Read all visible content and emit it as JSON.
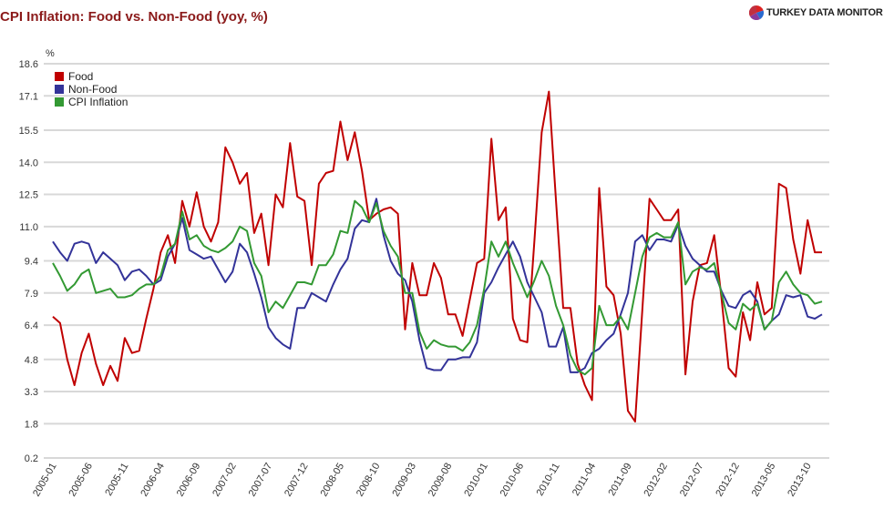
{
  "title": "CPI Inflation: Food vs. Non-Food (yoy, %)",
  "logo": {
    "text": "TURKEY DATA MONITOR",
    "icon": "pie-chart-icon"
  },
  "chart_data": {
    "type": "line",
    "title": "CPI Inflation: Food vs. Non-Food (yoy, %)",
    "ylabel": "%",
    "ylim": [
      0.2,
      18.6
    ],
    "yticks": [
      "0.2",
      "1.8",
      "3.3",
      "4.8",
      "6.4",
      "7.9",
      "9.4",
      "11.0",
      "12.5",
      "14.0",
      "15.5",
      "17.1",
      "18.6"
    ],
    "grid": true,
    "legend_placement": "top-left",
    "x_start": "2005-01",
    "x_end": "2013-12",
    "xtick_labels": [
      "2005-01",
      "2005-06",
      "2005-11",
      "2006-04",
      "2006-09",
      "2007-02",
      "2007-07",
      "2007-12",
      "2008-05",
      "2008-10",
      "2009-03",
      "2009-08",
      "2010-01",
      "2010-06",
      "2010-11",
      "2011-04",
      "2011-09",
      "2012-02",
      "2012-07",
      "2012-12",
      "2013-05",
      "2013-10"
    ],
    "series": [
      {
        "name": "Food",
        "color": "#c00000",
        "values": [
          6.8,
          6.5,
          4.8,
          3.6,
          5.1,
          6.0,
          4.6,
          3.6,
          4.5,
          3.8,
          5.8,
          5.1,
          5.2,
          6.7,
          8.1,
          9.8,
          10.6,
          9.3,
          12.2,
          11.0,
          12.6,
          11.0,
          10.3,
          11.2,
          14.7,
          14.0,
          13.0,
          13.5,
          10.7,
          11.6,
          9.2,
          12.5,
          11.9,
          14.9,
          12.4,
          12.2,
          9.2,
          13.0,
          13.5,
          13.6,
          15.9,
          14.1,
          15.4,
          13.6,
          11.3,
          11.6,
          11.8,
          11.9,
          11.6,
          6.2,
          9.3,
          7.8,
          7.8,
          9.3,
          8.6,
          6.9,
          6.9,
          5.9,
          7.6,
          9.3,
          9.5,
          15.1,
          11.3,
          11.9,
          6.7,
          5.7,
          5.6,
          10.4,
          15.4,
          17.3,
          12.2,
          7.2,
          7.2,
          4.6,
          3.6,
          2.9,
          12.8,
          8.2,
          7.8,
          6.0,
          2.4,
          1.9,
          7.1,
          12.3,
          11.8,
          11.3,
          11.3,
          11.8,
          4.1,
          7.5,
          9.2,
          9.3,
          10.6,
          7.7,
          4.4,
          4.0,
          7.0,
          5.7,
          8.4,
          6.9,
          7.2,
          13.0,
          12.8,
          10.4,
          8.8,
          11.3,
          9.8,
          9.8
        ]
      },
      {
        "name": "Non-Food",
        "color": "#333399",
        "values": [
          10.3,
          9.8,
          9.4,
          10.2,
          10.3,
          10.2,
          9.3,
          9.8,
          9.5,
          9.2,
          8.5,
          8.9,
          9.0,
          8.7,
          8.3,
          8.5,
          9.6,
          10.2,
          11.4,
          9.9,
          9.7,
          9.5,
          9.6,
          9.0,
          8.4,
          8.9,
          10.2,
          9.8,
          8.8,
          7.7,
          6.3,
          5.8,
          5.5,
          5.3,
          7.2,
          7.2,
          7.9,
          7.7,
          7.5,
          8.3,
          9.0,
          9.5,
          10.9,
          11.3,
          11.2,
          12.3,
          10.6,
          9.4,
          8.8,
          8.5,
          7.5,
          5.7,
          4.4,
          4.3,
          4.3,
          4.8,
          4.8,
          4.9,
          4.9,
          5.6,
          7.9,
          8.4,
          9.1,
          9.7,
          10.3,
          9.6,
          8.4,
          7.7,
          7.0,
          5.4,
          5.4,
          6.3,
          4.2,
          4.2,
          4.4,
          5.1,
          5.3,
          5.7,
          6.0,
          6.9,
          7.9,
          10.3,
          10.6,
          9.9,
          10.4,
          10.4,
          10.3,
          11.1,
          10.1,
          9.5,
          9.2,
          8.9,
          8.9,
          8.0,
          7.3,
          7.2,
          7.8,
          8.0,
          7.5,
          6.2,
          6.6,
          6.9,
          7.8,
          7.7,
          7.8,
          6.8,
          6.7,
          6.9
        ]
      },
      {
        "name": "CPI Inflation",
        "color": "#339933",
        "values": [
          9.3,
          8.7,
          8.0,
          8.3,
          8.8,
          9.0,
          7.9,
          8.0,
          8.1,
          7.7,
          7.7,
          7.8,
          8.1,
          8.3,
          8.3,
          8.7,
          9.9,
          10.2,
          11.7,
          10.4,
          10.6,
          10.1,
          9.9,
          9.8,
          10.0,
          10.3,
          11.0,
          10.8,
          9.3,
          8.7,
          7.0,
          7.5,
          7.2,
          7.8,
          8.4,
          8.4,
          8.3,
          9.2,
          9.2,
          9.7,
          10.8,
          10.7,
          12.2,
          11.9,
          11.2,
          12.1,
          10.8,
          10.1,
          9.6,
          7.9,
          7.9,
          6.1,
          5.3,
          5.7,
          5.5,
          5.4,
          5.4,
          5.2,
          5.6,
          6.4,
          8.1,
          10.3,
          9.6,
          10.3,
          9.3,
          8.5,
          7.7,
          8.5,
          9.4,
          8.7,
          7.3,
          6.4,
          5.0,
          4.3,
          4.1,
          4.4,
          7.3,
          6.4,
          6.4,
          6.8,
          6.2,
          7.9,
          9.6,
          10.5,
          10.7,
          10.5,
          10.5,
          11.2,
          8.3,
          8.9,
          9.1,
          9.0,
          9.3,
          7.9,
          6.5,
          6.2,
          7.4,
          7.1,
          7.4,
          6.2,
          6.6,
          8.4,
          8.9,
          8.3,
          7.9,
          7.8,
          7.4,
          7.5
        ]
      }
    ]
  }
}
